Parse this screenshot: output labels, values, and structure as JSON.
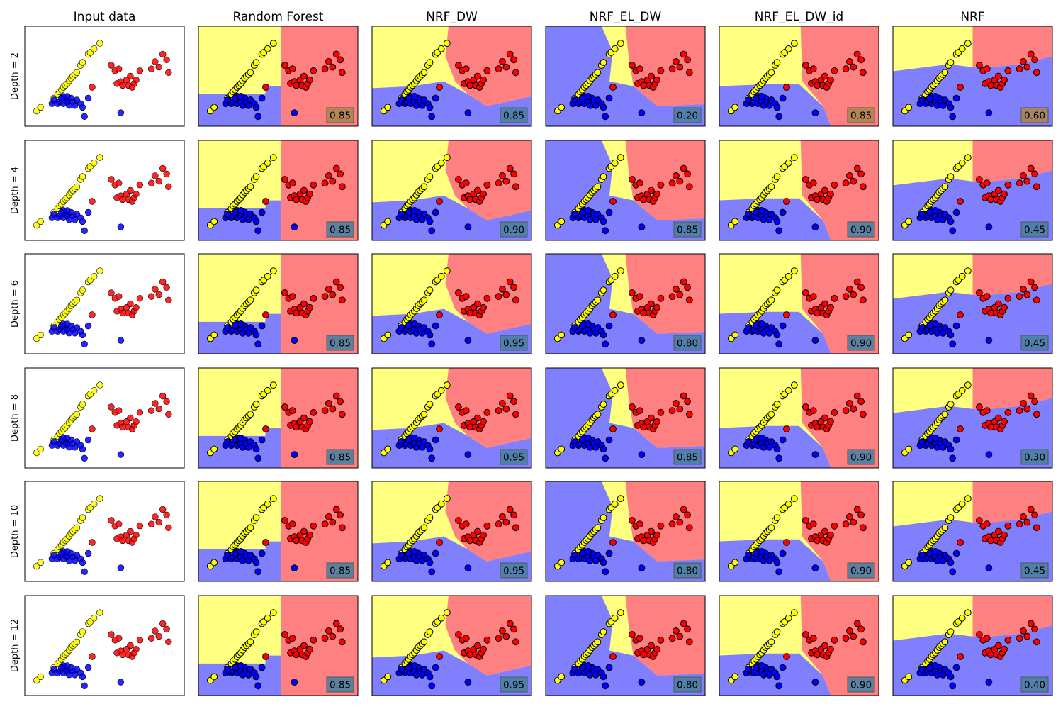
{
  "figure": {
    "columns": [
      "Input data",
      "Random Forest",
      "NRF_DW",
      "NRF_EL_DW",
      "NRF_EL_DW_id",
      "NRF"
    ],
    "rows": [
      "Depth = 2",
      "Depth = 4",
      "Depth = 6",
      "Depth = 8",
      "Depth = 10",
      "Depth = 12"
    ]
  },
  "colors": {
    "class_yellow": "#ffff00",
    "class_red": "#ff0000",
    "class_blue": "#0000ff",
    "region_yellow": "#ffff80",
    "region_red": "#ff8080",
    "region_blue": "#8080ff",
    "score_box": "#4a7fa0",
    "score_box_warm": "#a88550"
  },
  "chart_data": {
    "type": "scatter",
    "classes": [
      "yellow",
      "blue",
      "red"
    ],
    "points": {
      "yellow": [
        [
          0.8,
          1.2
        ],
        [
          1.2,
          1.6
        ],
        [
          2.6,
          2.6
        ],
        [
          3.0,
          3.0
        ],
        [
          3.2,
          3.3
        ],
        [
          3.4,
          3.5
        ],
        [
          3.6,
          3.8
        ],
        [
          3.8,
          4.0
        ],
        [
          4.0,
          4.2
        ],
        [
          4.2,
          4.5
        ],
        [
          4.4,
          4.8
        ],
        [
          4.6,
          5.0
        ],
        [
          4.8,
          5.2
        ],
        [
          5.0,
          5.4
        ],
        [
          5.4,
          6.2
        ],
        [
          5.6,
          6.5
        ],
        [
          6.2,
          7.4
        ],
        [
          6.4,
          7.6
        ],
        [
          6.8,
          8.0
        ],
        [
          7.4,
          8.6
        ]
      ],
      "blue": [
        [
          2.4,
          2.0
        ],
        [
          2.6,
          2.4
        ],
        [
          3.0,
          2.0
        ],
        [
          3.2,
          2.2
        ],
        [
          3.6,
          2.0
        ],
        [
          3.8,
          2.4
        ],
        [
          4.0,
          2.2
        ],
        [
          4.2,
          1.8
        ],
        [
          4.4,
          2.6
        ],
        [
          4.6,
          2.2
        ],
        [
          4.8,
          1.8
        ],
        [
          5.0,
          2.4
        ],
        [
          5.4,
          2.0
        ],
        [
          5.6,
          1.6
        ],
        [
          5.8,
          0.6
        ],
        [
          3.6,
          2.8
        ],
        [
          3.4,
          2.6
        ],
        [
          4.0,
          2.8
        ],
        [
          6.2,
          2.6
        ],
        [
          9.6,
          1.0
        ]
      ],
      "red": [
        [
          6.6,
          3.8
        ],
        [
          8.6,
          6.2
        ],
        [
          9.0,
          5.6
        ],
        [
          9.2,
          4.2
        ],
        [
          9.4,
          5.8
        ],
        [
          9.6,
          4.4
        ],
        [
          9.8,
          4.0
        ],
        [
          10.2,
          4.6
        ],
        [
          10.4,
          4.0
        ],
        [
          10.6,
          5.0
        ],
        [
          10.8,
          3.8
        ],
        [
          11.0,
          4.2
        ],
        [
          11.2,
          4.6
        ],
        [
          11.6,
          5.6
        ],
        [
          12.8,
          5.8
        ],
        [
          13.2,
          6.6
        ],
        [
          13.6,
          6.0
        ],
        [
          14.0,
          7.4
        ],
        [
          14.4,
          6.8
        ],
        [
          14.6,
          5.4
        ]
      ]
    },
    "xlim": [
      0,
      15.8
    ],
    "ylim": [
      0,
      10
    ],
    "scores": [
      [
        "0.85",
        "0.85",
        "0.20",
        "0.85",
        "0.60"
      ],
      [
        "0.85",
        "0.90",
        "0.85",
        "0.90",
        "0.45"
      ],
      [
        "0.85",
        "0.95",
        "0.80",
        "0.90",
        "0.45"
      ],
      [
        "0.85",
        "0.95",
        "0.85",
        "0.90",
        "0.30"
      ],
      [
        "0.85",
        "0.95",
        "0.80",
        "0.90",
        "0.45"
      ],
      [
        "0.85",
        "0.95",
        "0.80",
        "0.90",
        "0.40"
      ]
    ],
    "warm_score_boxes": [
      [
        0,
        0
      ],
      [
        0,
        3
      ],
      [
        0,
        4
      ]
    ]
  }
}
